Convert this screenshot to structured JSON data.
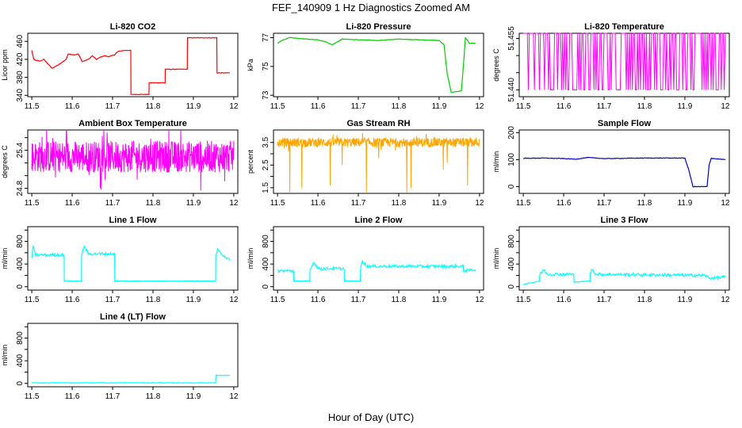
{
  "figure": {
    "title": "FEF_140909  1 Hz Diagnostics Zoomed AM",
    "xlabel": "Hour of Day (UTC)"
  },
  "chart_data": [
    {
      "type": "line",
      "title": "Li-820 CO2",
      "ylabel": "Licor ppm",
      "color": "#ff0000",
      "xlim": [
        11.49,
        12.01
      ],
      "ylim": [
        337,
        478
      ],
      "xticks": [
        11.5,
        11.6,
        11.7,
        11.8,
        11.9,
        12.0
      ],
      "yticks": [
        340,
        380,
        420,
        460
      ],
      "series": [
        {
          "name": "CO2",
          "x": [
            11.5,
            11.505,
            11.51,
            11.52,
            11.53,
            11.545,
            11.55,
            11.56,
            11.57,
            11.585,
            11.59,
            11.605,
            11.615,
            11.625,
            11.64,
            11.65,
            11.66,
            11.67,
            11.68,
            11.69,
            11.705,
            11.71,
            11.715,
            11.73,
            11.745,
            11.7455,
            11.755,
            11.79,
            11.7905,
            11.83,
            11.8305,
            11.885,
            11.8855,
            11.958,
            11.9585,
            11.97,
            11.99
          ],
          "y": [
            440,
            420,
            418,
            416,
            420,
            405,
            400,
            405,
            410,
            420,
            432,
            430,
            432,
            415,
            420,
            428,
            420,
            425,
            428,
            426,
            430,
            435,
            438,
            440,
            440,
            342,
            342,
            342,
            368,
            368,
            398,
            398,
            468,
            468,
            390,
            390,
            390
          ]
        }
      ]
    },
    {
      "type": "line",
      "title": "Li-820 Pressure",
      "ylabel": "kPa",
      "color": "#00cc00",
      "xlim": [
        11.49,
        12.01
      ],
      "ylim": [
        72.9,
        77.3
      ],
      "xticks": [
        11.5,
        11.6,
        11.7,
        11.8,
        11.9,
        12.0
      ],
      "yticks": [
        73,
        75,
        77
      ],
      "series": [
        {
          "name": "Pressure",
          "x": [
            11.5,
            11.51,
            11.53,
            11.57,
            11.6,
            11.62,
            11.635,
            11.66,
            11.7,
            11.75,
            11.8,
            11.85,
            11.9,
            11.912,
            11.92,
            11.93,
            11.955,
            11.96,
            11.965,
            11.975,
            11.99
          ],
          "y": [
            76.6,
            76.8,
            77.0,
            76.9,
            76.85,
            76.7,
            76.5,
            76.9,
            76.85,
            76.8,
            76.9,
            76.85,
            76.8,
            76.5,
            74.5,
            73.2,
            73.3,
            75.0,
            77.0,
            76.6,
            76.6
          ]
        }
      ]
    },
    {
      "type": "line",
      "title": "Li-820 Temperature",
      "ylabel": "degrees C",
      "color": "#ff00ff",
      "xlim": [
        11.49,
        12.01
      ],
      "ylim": [
        51.438,
        51.4565
      ],
      "xticks": [
        11.5,
        11.6,
        11.7,
        11.8,
        11.9,
        12.0
      ],
      "yticks": [
        51.44,
        51.445,
        51.45,
        51.455
      ],
      "yticklabels": [
        "51.440",
        "",
        "",
        "51.455"
      ],
      "series": [
        {
          "name": "Temperature",
          "low": 51.44,
          "high": 51.4565
        }
      ]
    },
    {
      "type": "line",
      "title": "Ambient Box Temperature",
      "ylabel": "degrees C",
      "color": "#ff00ff",
      "xlim": [
        11.49,
        12.01
      ],
      "ylim": [
        24.72,
        25.72
      ],
      "xticks": [
        11.5,
        11.6,
        11.7,
        11.8,
        11.9,
        12.0
      ],
      "yticks": [
        24.8,
        25.0,
        25.2,
        25.4,
        25.6
      ],
      "yticklabels": [
        "24.8",
        "",
        "",
        "25.4",
        ""
      ],
      "series": [
        {
          "name": "Box Temp",
          "mean": 25.3,
          "noise": 0.25
        }
      ]
    },
    {
      "type": "line",
      "title": "Gas Stream RH",
      "ylabel": "percent",
      "color": "#ffa500",
      "xlim": [
        11.49,
        12.01
      ],
      "ylim": [
        1.25,
        4.05
      ],
      "xticks": [
        11.5,
        11.6,
        11.7,
        11.8,
        11.9,
        12.0
      ],
      "yticks": [
        1.5,
        2.0,
        2.5,
        3.0,
        3.5
      ],
      "yticklabels": [
        "1.5",
        "",
        "2.5",
        "",
        "3.5"
      ],
      "series": [
        {
          "name": "RH",
          "mean": 3.5,
          "noise": 0.2,
          "spike_x": [
            11.53,
            11.56,
            11.63,
            11.66,
            11.72,
            11.75,
            11.82,
            11.83,
            11.91,
            11.92,
            11.97
          ],
          "spike_y": [
            1.3,
            1.5,
            1.6,
            2.5,
            1.3,
            2.8,
            1.3,
            1.5,
            2.3,
            2.6,
            1.6
          ]
        }
      ]
    },
    {
      "type": "line",
      "title": "Sample Flow",
      "ylabel": "ml/min",
      "color": "#0000cd",
      "xlim": [
        11.49,
        12.01
      ],
      "ylim": [
        -25,
        210
      ],
      "xticks": [
        11.5,
        11.6,
        11.7,
        11.8,
        11.9,
        12.0
      ],
      "yticks": [
        0,
        100,
        200
      ],
      "series": [
        {
          "name": "Sample Flow",
          "x": [
            11.5,
            11.55,
            11.6,
            11.63,
            11.66,
            11.7,
            11.8,
            11.9,
            11.91,
            11.92,
            11.955,
            11.96,
            11.965,
            12.0
          ],
          "y": [
            105,
            106,
            104,
            102,
            108,
            104,
            106,
            106,
            60,
            0,
            0,
            80,
            105,
            100
          ]
        }
      ]
    },
    {
      "type": "line",
      "title": "Line 1 Flow",
      "ylabel": "ml/min",
      "color": "#00ffff",
      "xlim": [
        11.49,
        12.01
      ],
      "ylim": [
        -60,
        1060
      ],
      "xticks": [
        11.5,
        11.6,
        11.7,
        11.8,
        11.9,
        12.0
      ],
      "yticks": [
        0,
        200,
        400,
        600,
        800,
        1000
      ],
      "yticklabels": [
        "0",
        "",
        "400",
        "",
        "800",
        ""
      ],
      "series": [
        {
          "name": "Line 1",
          "x": [
            11.5,
            11.503,
            11.51,
            11.58,
            11.5805,
            11.623,
            11.6235,
            11.63,
            11.64,
            11.705,
            11.7055,
            11.955,
            11.9555,
            11.96,
            11.99
          ],
          "y": [
            520,
            700,
            560,
            560,
            100,
            100,
            560,
            720,
            580,
            580,
            100,
            100,
            560,
            640,
            460
          ]
        }
      ]
    },
    {
      "type": "line",
      "title": "Line 2 Flow",
      "ylabel": "ml/min",
      "color": "#00ffff",
      "xlim": [
        11.49,
        12.01
      ],
      "ylim": [
        -60,
        1060
      ],
      "xticks": [
        11.5,
        11.6,
        11.7,
        11.8,
        11.9,
        12.0
      ],
      "yticks": [
        0,
        200,
        400,
        600,
        800,
        1000
      ],
      "yticklabels": [
        "0",
        "",
        "400",
        "",
        "800",
        ""
      ],
      "series": [
        {
          "name": "Line 2",
          "x": [
            11.5,
            11.54,
            11.5405,
            11.58,
            11.5805,
            11.59,
            11.6,
            11.665,
            11.6655,
            11.705,
            11.7055,
            11.71,
            11.72,
            11.96,
            11.9605,
            11.99
          ],
          "y": [
            280,
            280,
            100,
            100,
            300,
            440,
            320,
            320,
            100,
            100,
            320,
            470,
            360,
            360,
            280,
            300
          ]
        }
      ]
    },
    {
      "type": "line",
      "title": "Line 3 Flow",
      "ylabel": "ml/min",
      "color": "#00ffff",
      "xlim": [
        11.49,
        12.01
      ],
      "ylim": [
        -60,
        1060
      ],
      "xticks": [
        11.5,
        11.6,
        11.7,
        11.8,
        11.9,
        12.0
      ],
      "yticks": [
        0,
        200,
        400,
        600,
        800,
        1000
      ],
      "yticklabels": [
        "0",
        "",
        "400",
        "",
        "800",
        ""
      ],
      "series": [
        {
          "name": "Line 3",
          "x": [
            11.5,
            11.54,
            11.5405,
            11.55,
            11.56,
            11.625,
            11.6255,
            11.665,
            11.6655,
            11.67,
            11.68,
            11.95,
            11.96,
            12.0
          ],
          "y": [
            40,
            100,
            200,
            300,
            220,
            220,
            80,
            100,
            220,
            320,
            220,
            200,
            150,
            170
          ]
        }
      ]
    },
    {
      "type": "line",
      "title": "Line 4 (LT) Flow",
      "ylabel": "ml/min",
      "color": "#00ffff",
      "xlim": [
        11.49,
        12.01
      ],
      "ylim": [
        -60,
        1060
      ],
      "xticks": [
        11.5,
        11.6,
        11.7,
        11.8,
        11.9,
        12.0
      ],
      "yticks": [
        0,
        200,
        400,
        600,
        800,
        1000
      ],
      "yticklabels": [
        "0",
        "",
        "400",
        "",
        "800",
        ""
      ],
      "series": [
        {
          "name": "Line 4",
          "x": [
            11.5,
            11.955,
            11.956,
            11.96,
            11.99
          ],
          "y": [
            10,
            10,
            160,
            140,
            140
          ]
        }
      ]
    }
  ]
}
